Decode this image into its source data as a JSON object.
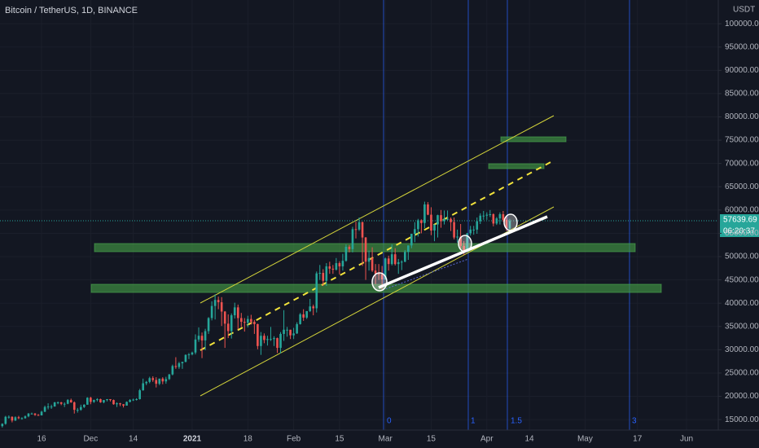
{
  "chart_data": {
    "type": "candlestick",
    "title": "Bitcoin / TetherUS, 1D, BINANCE",
    "y_axis_label": "USDT",
    "countdown": "06:20:37",
    "fib_time_labels": [
      "0",
      "1",
      "1.5",
      "3"
    ],
    "up_color": "#26a69a",
    "down_color": "#ef5350",
    "grid": true,
    "xlim": [
      -0.7,
      218.2
    ],
    "xticks": [
      {
        "value": 12,
        "label": "16"
      },
      {
        "value": 27,
        "label": "Dec"
      },
      {
        "value": 40,
        "label": "14"
      },
      {
        "value": 58,
        "label": "2021"
      },
      {
        "value": 75,
        "label": "18"
      },
      {
        "value": 89,
        "label": "Feb"
      },
      {
        "value": 103,
        "label": "15"
      },
      {
        "value": 117,
        "label": "Mar"
      },
      {
        "value": 131,
        "label": "15"
      },
      {
        "value": 148,
        "label": "Apr"
      },
      {
        "value": 161,
        "label": "14"
      },
      {
        "value": 178,
        "label": "May"
      },
      {
        "value": 194,
        "label": "17"
      },
      {
        "value": 209,
        "label": "Jun"
      }
    ],
    "ylim": [
      12400,
      105100
    ],
    "yticks": [
      {
        "value": 15000,
        "label": "15000.00"
      },
      {
        "value": 20000,
        "label": "20000.00"
      },
      {
        "value": 25000,
        "label": "25000.00"
      },
      {
        "value": 30000,
        "label": "30000.00"
      },
      {
        "value": 35000,
        "label": "35000.00"
      },
      {
        "value": 40000,
        "label": "40000.00"
      },
      {
        "value": 45000,
        "label": "45000.00"
      },
      {
        "value": 50000,
        "label": "50000.00"
      },
      {
        "value": 55000,
        "label": "55000.00"
      },
      {
        "value": 60000,
        "label": "60000.00"
      },
      {
        "value": 65000,
        "label": "65000.00"
      },
      {
        "value": 70000,
        "label": "70000.00"
      },
      {
        "value": 75000,
        "label": "75000.00"
      },
      {
        "value": 80000,
        "label": "80000.00"
      },
      {
        "value": 85000,
        "label": "85000.00"
      },
      {
        "value": 90000,
        "label": "90000.00"
      },
      {
        "value": 95000,
        "label": "95000.00"
      },
      {
        "value": 100000,
        "label": "100000.00"
      }
    ],
    "open": [
      13600,
      14100,
      15600,
      15600,
      14800,
      15500,
      15300,
      15300,
      15700,
      16300,
      16300,
      16000,
      15900,
      16700,
      17700,
      17800,
      17800,
      18700,
      18700,
      18400,
      18400,
      19200,
      18700,
      17100,
      17100,
      17700,
      18200,
      19700,
      18800,
      19200,
      19400,
      18700,
      19200,
      19400,
      19200,
      18300,
      18500,
      18300,
      18000,
      18800,
      19200,
      19300,
      19400,
      21300,
      22800,
      23100,
      23900,
      23500,
      22700,
      23800,
      23200,
      23700,
      24700,
      26500,
      26300,
      27100,
      27400,
      28900,
      29000,
      29400,
      32200,
      33000,
      32000,
      34000,
      36800,
      39400,
      40700,
      40200,
      38200,
      35600,
      34000,
      37400,
      39100,
      36800,
      36000,
      35800,
      36600,
      36000,
      35500,
      30800,
      33000,
      32100,
      32300,
      32300,
      32500,
      30400,
      33400,
      34300,
      34300,
      33100,
      33500,
      35500,
      37600,
      36900,
      38300,
      39300,
      38900,
      46400,
      46500,
      44800,
      47900,
      47400,
      47200,
      48600,
      47900,
      49100,
      52100,
      51600,
      55900,
      55800,
      57400,
      54100,
      48900,
      49700,
      47000,
      46300,
      46200,
      45100,
      49600,
      48400,
      50500,
      48400,
      48800,
      48900,
      51000,
      52400,
      54900,
      55900,
      57800,
      57200,
      61200,
      59000,
      55600,
      56900,
      58900,
      57600,
      58100,
      58100,
      57400,
      54100,
      54300,
      52300,
      51300,
      55000,
      55800,
      55800,
      57600,
      58800,
      58800,
      59000,
      59100,
      57100,
      58200,
      59100,
      57900,
      56000
    ],
    "high": [
      14200,
      15800,
      15900,
      15700,
      15700,
      15800,
      15500,
      15900,
      16400,
      16500,
      16400,
      16200,
      16900,
      18000,
      18500,
      18200,
      18800,
      18900,
      18800,
      18700,
      19400,
      19500,
      18900,
      17500,
      18200,
      18300,
      19800,
      19900,
      19300,
      19600,
      19500,
      19200,
      19400,
      19400,
      19300,
      18700,
      18600,
      18300,
      18900,
      19400,
      19500,
      19600,
      21600,
      23800,
      23300,
      24200,
      24300,
      24100,
      23800,
      24100,
      24200,
      24800,
      26800,
      28400,
      27400,
      27400,
      29000,
      29300,
      29600,
      33300,
      34800,
      33700,
      34500,
      37000,
      40400,
      41900,
      41400,
      41300,
      38300,
      37600,
      37800,
      40100,
      39700,
      37900,
      36800,
      37300,
      37500,
      36400,
      35600,
      33800,
      33500,
      33000,
      34900,
      32900,
      32600,
      33800,
      38500,
      34900,
      34300,
      34700,
      35900,
      37900,
      38700,
      38300,
      40900,
      39700,
      46800,
      48200,
      47300,
      48600,
      48900,
      48200,
      49700,
      49000,
      50600,
      52600,
      52500,
      56400,
      57500,
      58400,
      57500,
      54200,
      51300,
      52000,
      48400,
      48400,
      48000,
      49800,
      50200,
      52600,
      51800,
      49500,
      49200,
      51400,
      52400,
      54900,
      57400,
      58100,
      58000,
      61800,
      61700,
      60600,
      56900,
      59000,
      60000,
      59900,
      59900,
      58400,
      58400,
      55800,
      57000,
      53300,
      55100,
      56600,
      56600,
      58400,
      59300,
      59800,
      59500,
      60000,
      59300,
      58500,
      59500,
      59800,
      58700,
      58100
    ],
    "low": [
      13300,
      13900,
      15200,
      14400,
      14700,
      15100,
      15000,
      15200,
      15500,
      16100,
      15800,
      15800,
      15900,
      16600,
      17200,
      17300,
      17800,
      18300,
      18100,
      17700,
      18300,
      18600,
      16300,
      16500,
      16900,
      17500,
      18200,
      18300,
      18600,
      18900,
      18600,
      18500,
      18900,
      18900,
      18200,
      17700,
      17900,
      17600,
      18000,
      18700,
      19000,
      19100,
      19300,
      21200,
      22400,
      22800,
      23100,
      21900,
      22400,
      22600,
      22700,
      23500,
      24500,
      25900,
      25900,
      25900,
      27300,
      28000,
      28800,
      29000,
      31700,
      28200,
      29900,
      33400,
      36300,
      36500,
      38700,
      35100,
      30400,
      32500,
      32400,
      36700,
      34400,
      34900,
      33900,
      34800,
      35400,
      33400,
      30100,
      28900,
      31400,
      30900,
      31900,
      30800,
      29300,
      29200,
      31900,
      32800,
      32300,
      32300,
      33400,
      35400,
      36200,
      36600,
      38100,
      37400,
      38000,
      45000,
      43700,
      43700,
      46300,
      46300,
      47000,
      46200,
      47000,
      48900,
      50900,
      50900,
      53900,
      55500,
      48000,
      45000,
      47000,
      46700,
      44100,
      45000,
      43000,
      45000,
      47000,
      48100,
      48100,
      46300,
      47100,
      48800,
      49300,
      51800,
      53100,
      54300,
      55000,
      56100,
      58900,
      54600,
      53300,
      54100,
      56200,
      56900,
      57800,
      55500,
      53700,
      53000,
      51700,
      50400,
      51200,
      54500,
      54700,
      54900,
      57000,
      57900,
      57900,
      58500,
      56500,
      56800,
      56900,
      57500,
      55500,
      55800
    ],
    "close": [
      14100,
      15600,
      15600,
      14800,
      15500,
      15300,
      15300,
      15700,
      16300,
      16300,
      16000,
      15900,
      16700,
      17700,
      17800,
      17800,
      18700,
      18700,
      18400,
      18400,
      19200,
      18700,
      17100,
      17100,
      17700,
      18200,
      19700,
      18800,
      19200,
      19400,
      18700,
      19200,
      19400,
      19200,
      18300,
      18500,
      18300,
      18000,
      18800,
      19200,
      19300,
      19400,
      21300,
      22800,
      23100,
      23900,
      23500,
      22700,
      23800,
      23200,
      23700,
      24700,
      26500,
      26300,
      27100,
      27400,
      28900,
      29000,
      29400,
      32200,
      33000,
      32000,
      34000,
      36800,
      39400,
      40700,
      40200,
      38200,
      35600,
      34000,
      37400,
      39100,
      36800,
      36000,
      35800,
      36600,
      36000,
      35500,
      30800,
      33000,
      32100,
      32300,
      32300,
      32500,
      30400,
      33400,
      34300,
      34300,
      33100,
      33500,
      35500,
      37600,
      36900,
      38300,
      39300,
      38900,
      46400,
      46500,
      44800,
      47900,
      47400,
      47200,
      48600,
      47900,
      49100,
      52100,
      51600,
      55900,
      55800,
      57400,
      54100,
      48900,
      49700,
      47000,
      46300,
      46200,
      45100,
      49600,
      48400,
      50500,
      48400,
      48800,
      48900,
      51000,
      52400,
      54900,
      55900,
      57800,
      57200,
      61200,
      59000,
      55600,
      56900,
      58900,
      57600,
      58100,
      58100,
      57400,
      54100,
      54300,
      52300,
      51300,
      55000,
      55800,
      55800,
      57600,
      58800,
      58800,
      59000,
      59100,
      57100,
      58200,
      59100,
      57900,
      56000,
      57639.69
    ]
  }
}
